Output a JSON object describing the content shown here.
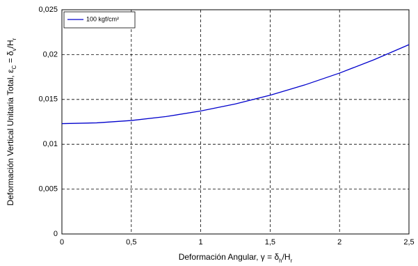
{
  "chart_data": {
    "type": "line",
    "xlabel": [
      "Deformación  Angular, γ = δ",
      "h",
      "/H",
      "r"
    ],
    "ylabel": [
      "Deformación Vertical Unitaria Total, ε",
      "C",
      " = δ",
      "v",
      "/H",
      "r"
    ],
    "x": [
      0,
      0.25,
      0.5,
      0.75,
      1,
      1.25,
      1.5,
      1.75,
      2,
      2.25,
      2.5
    ],
    "series": [
      {
        "name": "100 kgf/cm²",
        "color": "#0000cc",
        "values": [
          0.0123,
          0.01239,
          0.01265,
          0.01309,
          0.01371,
          0.0145,
          0.01547,
          0.01662,
          0.01794,
          0.01944,
          0.02111
        ]
      }
    ],
    "xlim": [
      0,
      2.5
    ],
    "xticks": [
      0,
      {
        "value": 0.5,
        "label": "0,5"
      },
      1,
      {
        "value": 1.5,
        "label": "1,5"
      },
      2,
      {
        "value": 2.5,
        "label": "2,5"
      }
    ],
    "ylim": [
      0,
      0.025
    ],
    "yticks": [
      0,
      {
        "value": 0.005,
        "label": "0,005"
      },
      {
        "value": 0.01,
        "label": "0,01"
      },
      {
        "value": 0.015,
        "label": "0,015"
      },
      {
        "value": 0.02,
        "label": "0,02"
      },
      {
        "value": 0.025,
        "label": "0,025"
      }
    ],
    "grid": true,
    "legend": "upper left"
  }
}
